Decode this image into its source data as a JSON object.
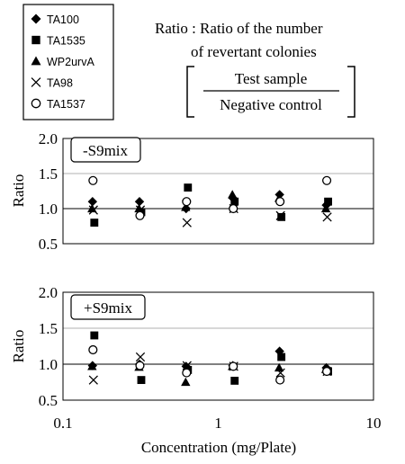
{
  "chart_data": {
    "type": "scatter",
    "x_scale": "log",
    "xlim": [
      0.1,
      10
    ],
    "x_ticks": [
      "0.1",
      "1",
      "10"
    ],
    "xlabel": "Concentration (mg/Plate)",
    "legend_position": "top-left",
    "legend": [
      {
        "name": "TA100",
        "marker": "diamond"
      },
      {
        "name": "TA1535",
        "marker": "square"
      },
      {
        "name": "WP2urvA",
        "marker": "triangle"
      },
      {
        "name": "TA98",
        "marker": "x"
      },
      {
        "name": "TA1537",
        "marker": "circle-open"
      }
    ],
    "ratio_note": {
      "title": "Ratio : Ratio of the number",
      "title_line2": "of revertant colonies",
      "numerator": "Test sample",
      "denominator": "Negative control"
    },
    "panels": [
      {
        "label": "-S9mix",
        "ylabel": "Ratio",
        "ylim": [
          0.5,
          2.0
        ],
        "y_ticks": [
          "0.5",
          "1.0",
          "1.5",
          "2.0"
        ],
        "grid": true,
        "x": [
          0.156,
          0.313,
          0.625,
          1.25,
          2.5,
          5
        ],
        "series": [
          {
            "name": "TA100",
            "values": [
              1.1,
              1.1,
              1.0,
              1.15,
              1.2,
              1.05
            ]
          },
          {
            "name": "TA1535",
            "values": [
              0.8,
              0.95,
              1.3,
              1.1,
              0.88,
              1.1
            ]
          },
          {
            "name": "WP2urvA",
            "values": [
              1.0,
              1.0,
              1.02,
              1.2,
              1.15,
              1.0
            ]
          },
          {
            "name": "TA98",
            "values": [
              0.98,
              0.98,
              0.8,
              1.0,
              0.9,
              0.88
            ]
          },
          {
            "name": "TA1537",
            "values": [
              1.4,
              0.9,
              1.1,
              1.0,
              1.1,
              1.4
            ]
          }
        ]
      },
      {
        "label": "+S9mix",
        "ylabel": "Ratio",
        "ylim": [
          0.5,
          2.0
        ],
        "y_ticks": [
          "0.5",
          "1.0",
          "1.5",
          "2.0"
        ],
        "grid": true,
        "x": [
          0.156,
          0.313,
          0.625,
          1.25,
          2.5,
          5
        ],
        "series": [
          {
            "name": "TA100",
            "values": [
              0.98,
              1.0,
              0.97,
              0.98,
              1.18,
              0.95
            ]
          },
          {
            "name": "TA1535",
            "values": [
              1.4,
              0.78,
              0.92,
              0.77,
              1.1,
              0.9
            ]
          },
          {
            "name": "WP2urvA",
            "values": [
              0.97,
              0.96,
              0.75,
              0.97,
              0.95,
              0.93
            ]
          },
          {
            "name": "TA98",
            "values": [
              0.78,
              1.1,
              0.98,
              0.97,
              0.88,
              0.9
            ]
          },
          {
            "name": "TA1537",
            "values": [
              1.2,
              0.98,
              0.88,
              0.97,
              0.78,
              0.9
            ]
          }
        ]
      }
    ]
  }
}
